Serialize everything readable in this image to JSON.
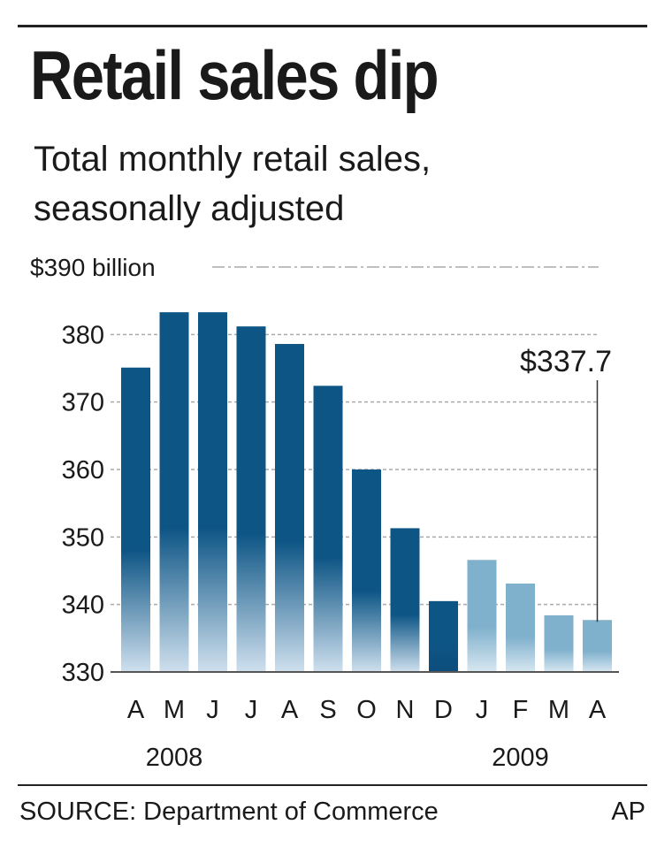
{
  "title": "Retail sales dip",
  "subtitle_line1": "Total monthly retail sales,",
  "subtitle_line2": "seasonally adjusted",
  "source": "SOURCE: Department of Commerce",
  "credit": "AP",
  "colors": {
    "bar_2008_top": "#0d5585",
    "bar_2008_fade": "#cfe0ee",
    "bar_2009_top": "#7fb0cc",
    "bar_2009_fade": "#d7e7f1",
    "december_bar_bottom": "#0d4d7c",
    "gridline": "#aaaaaa",
    "axis": "#555555"
  },
  "chart_data": {
    "type": "bar",
    "title": "Retail sales dip",
    "subtitle": "Total monthly retail sales, seasonally adjusted",
    "categories": [
      "A",
      "M",
      "J",
      "J",
      "A",
      "S",
      "O",
      "N",
      "D",
      "J",
      "F",
      "M",
      "A"
    ],
    "year_labels": [
      {
        "label": "2008",
        "under_index": 1
      },
      {
        "label": "2009",
        "under_index": 10
      }
    ],
    "series": [
      {
        "values": [
          375.1,
          383.3,
          383.3,
          381.2,
          378.6,
          372.4,
          360.0,
          351.3,
          340.5,
          346.6,
          343.1,
          338.4,
          337.7
        ]
      }
    ],
    "year_of_bar": [
      "2008",
      "2008",
      "2008",
      "2008",
      "2008",
      "2008",
      "2008",
      "2008",
      "2008",
      "2009",
      "2009",
      "2009",
      "2009"
    ],
    "yticks": [
      330,
      340,
      350,
      360,
      370,
      380,
      390
    ],
    "ytick_labels": [
      "330",
      "340",
      "350",
      "360",
      "370",
      "380",
      "$390 billion"
    ],
    "ylim": [
      330,
      390
    ],
    "grid": true,
    "annotation": {
      "text": "$337.7",
      "bar_index": 12
    }
  }
}
